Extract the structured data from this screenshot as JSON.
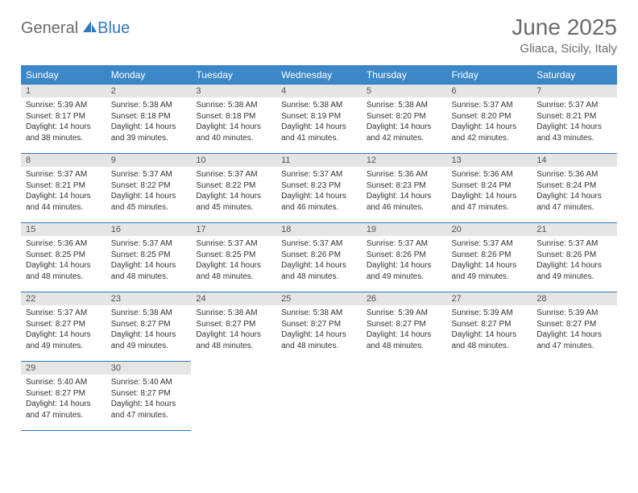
{
  "logo": {
    "general": "General",
    "blue": "Blue"
  },
  "title": "June 2025",
  "location": "Gliaca, Sicily, Italy",
  "colors": {
    "header_bg": "#3c87c7",
    "border": "#2f78bd",
    "daynum_bg": "#e5e5e5",
    "text": "#333333",
    "muted": "#6a6a6a"
  },
  "weekdays": [
    "Sunday",
    "Monday",
    "Tuesday",
    "Wednesday",
    "Thursday",
    "Friday",
    "Saturday"
  ],
  "weeks": [
    [
      {
        "n": "1",
        "sr": "Sunrise: 5:39 AM",
        "ss": "Sunset: 8:17 PM",
        "d1": "Daylight: 14 hours",
        "d2": "and 38 minutes."
      },
      {
        "n": "2",
        "sr": "Sunrise: 5:38 AM",
        "ss": "Sunset: 8:18 PM",
        "d1": "Daylight: 14 hours",
        "d2": "and 39 minutes."
      },
      {
        "n": "3",
        "sr": "Sunrise: 5:38 AM",
        "ss": "Sunset: 8:18 PM",
        "d1": "Daylight: 14 hours",
        "d2": "and 40 minutes."
      },
      {
        "n": "4",
        "sr": "Sunrise: 5:38 AM",
        "ss": "Sunset: 8:19 PM",
        "d1": "Daylight: 14 hours",
        "d2": "and 41 minutes."
      },
      {
        "n": "5",
        "sr": "Sunrise: 5:38 AM",
        "ss": "Sunset: 8:20 PM",
        "d1": "Daylight: 14 hours",
        "d2": "and 42 minutes."
      },
      {
        "n": "6",
        "sr": "Sunrise: 5:37 AM",
        "ss": "Sunset: 8:20 PM",
        "d1": "Daylight: 14 hours",
        "d2": "and 42 minutes."
      },
      {
        "n": "7",
        "sr": "Sunrise: 5:37 AM",
        "ss": "Sunset: 8:21 PM",
        "d1": "Daylight: 14 hours",
        "d2": "and 43 minutes."
      }
    ],
    [
      {
        "n": "8",
        "sr": "Sunrise: 5:37 AM",
        "ss": "Sunset: 8:21 PM",
        "d1": "Daylight: 14 hours",
        "d2": "and 44 minutes."
      },
      {
        "n": "9",
        "sr": "Sunrise: 5:37 AM",
        "ss": "Sunset: 8:22 PM",
        "d1": "Daylight: 14 hours",
        "d2": "and 45 minutes."
      },
      {
        "n": "10",
        "sr": "Sunrise: 5:37 AM",
        "ss": "Sunset: 8:22 PM",
        "d1": "Daylight: 14 hours",
        "d2": "and 45 minutes."
      },
      {
        "n": "11",
        "sr": "Sunrise: 5:37 AM",
        "ss": "Sunset: 8:23 PM",
        "d1": "Daylight: 14 hours",
        "d2": "and 46 minutes."
      },
      {
        "n": "12",
        "sr": "Sunrise: 5:36 AM",
        "ss": "Sunset: 8:23 PM",
        "d1": "Daylight: 14 hours",
        "d2": "and 46 minutes."
      },
      {
        "n": "13",
        "sr": "Sunrise: 5:36 AM",
        "ss": "Sunset: 8:24 PM",
        "d1": "Daylight: 14 hours",
        "d2": "and 47 minutes."
      },
      {
        "n": "14",
        "sr": "Sunrise: 5:36 AM",
        "ss": "Sunset: 8:24 PM",
        "d1": "Daylight: 14 hours",
        "d2": "and 47 minutes."
      }
    ],
    [
      {
        "n": "15",
        "sr": "Sunrise: 5:36 AM",
        "ss": "Sunset: 8:25 PM",
        "d1": "Daylight: 14 hours",
        "d2": "and 48 minutes."
      },
      {
        "n": "16",
        "sr": "Sunrise: 5:37 AM",
        "ss": "Sunset: 8:25 PM",
        "d1": "Daylight: 14 hours",
        "d2": "and 48 minutes."
      },
      {
        "n": "17",
        "sr": "Sunrise: 5:37 AM",
        "ss": "Sunset: 8:25 PM",
        "d1": "Daylight: 14 hours",
        "d2": "and 48 minutes."
      },
      {
        "n": "18",
        "sr": "Sunrise: 5:37 AM",
        "ss": "Sunset: 8:26 PM",
        "d1": "Daylight: 14 hours",
        "d2": "and 48 minutes."
      },
      {
        "n": "19",
        "sr": "Sunrise: 5:37 AM",
        "ss": "Sunset: 8:26 PM",
        "d1": "Daylight: 14 hours",
        "d2": "and 49 minutes."
      },
      {
        "n": "20",
        "sr": "Sunrise: 5:37 AM",
        "ss": "Sunset: 8:26 PM",
        "d1": "Daylight: 14 hours",
        "d2": "and 49 minutes."
      },
      {
        "n": "21",
        "sr": "Sunrise: 5:37 AM",
        "ss": "Sunset: 8:26 PM",
        "d1": "Daylight: 14 hours",
        "d2": "and 49 minutes."
      }
    ],
    [
      {
        "n": "22",
        "sr": "Sunrise: 5:37 AM",
        "ss": "Sunset: 8:27 PM",
        "d1": "Daylight: 14 hours",
        "d2": "and 49 minutes."
      },
      {
        "n": "23",
        "sr": "Sunrise: 5:38 AM",
        "ss": "Sunset: 8:27 PM",
        "d1": "Daylight: 14 hours",
        "d2": "and 49 minutes."
      },
      {
        "n": "24",
        "sr": "Sunrise: 5:38 AM",
        "ss": "Sunset: 8:27 PM",
        "d1": "Daylight: 14 hours",
        "d2": "and 48 minutes."
      },
      {
        "n": "25",
        "sr": "Sunrise: 5:38 AM",
        "ss": "Sunset: 8:27 PM",
        "d1": "Daylight: 14 hours",
        "d2": "and 48 minutes."
      },
      {
        "n": "26",
        "sr": "Sunrise: 5:39 AM",
        "ss": "Sunset: 8:27 PM",
        "d1": "Daylight: 14 hours",
        "d2": "and 48 minutes."
      },
      {
        "n": "27",
        "sr": "Sunrise: 5:39 AM",
        "ss": "Sunset: 8:27 PM",
        "d1": "Daylight: 14 hours",
        "d2": "and 48 minutes."
      },
      {
        "n": "28",
        "sr": "Sunrise: 5:39 AM",
        "ss": "Sunset: 8:27 PM",
        "d1": "Daylight: 14 hours",
        "d2": "and 47 minutes."
      }
    ],
    [
      {
        "n": "29",
        "sr": "Sunrise: 5:40 AM",
        "ss": "Sunset: 8:27 PM",
        "d1": "Daylight: 14 hours",
        "d2": "and 47 minutes."
      },
      {
        "n": "30",
        "sr": "Sunrise: 5:40 AM",
        "ss": "Sunset: 8:27 PM",
        "d1": "Daylight: 14 hours",
        "d2": "and 47 minutes."
      },
      null,
      null,
      null,
      null,
      null
    ]
  ]
}
